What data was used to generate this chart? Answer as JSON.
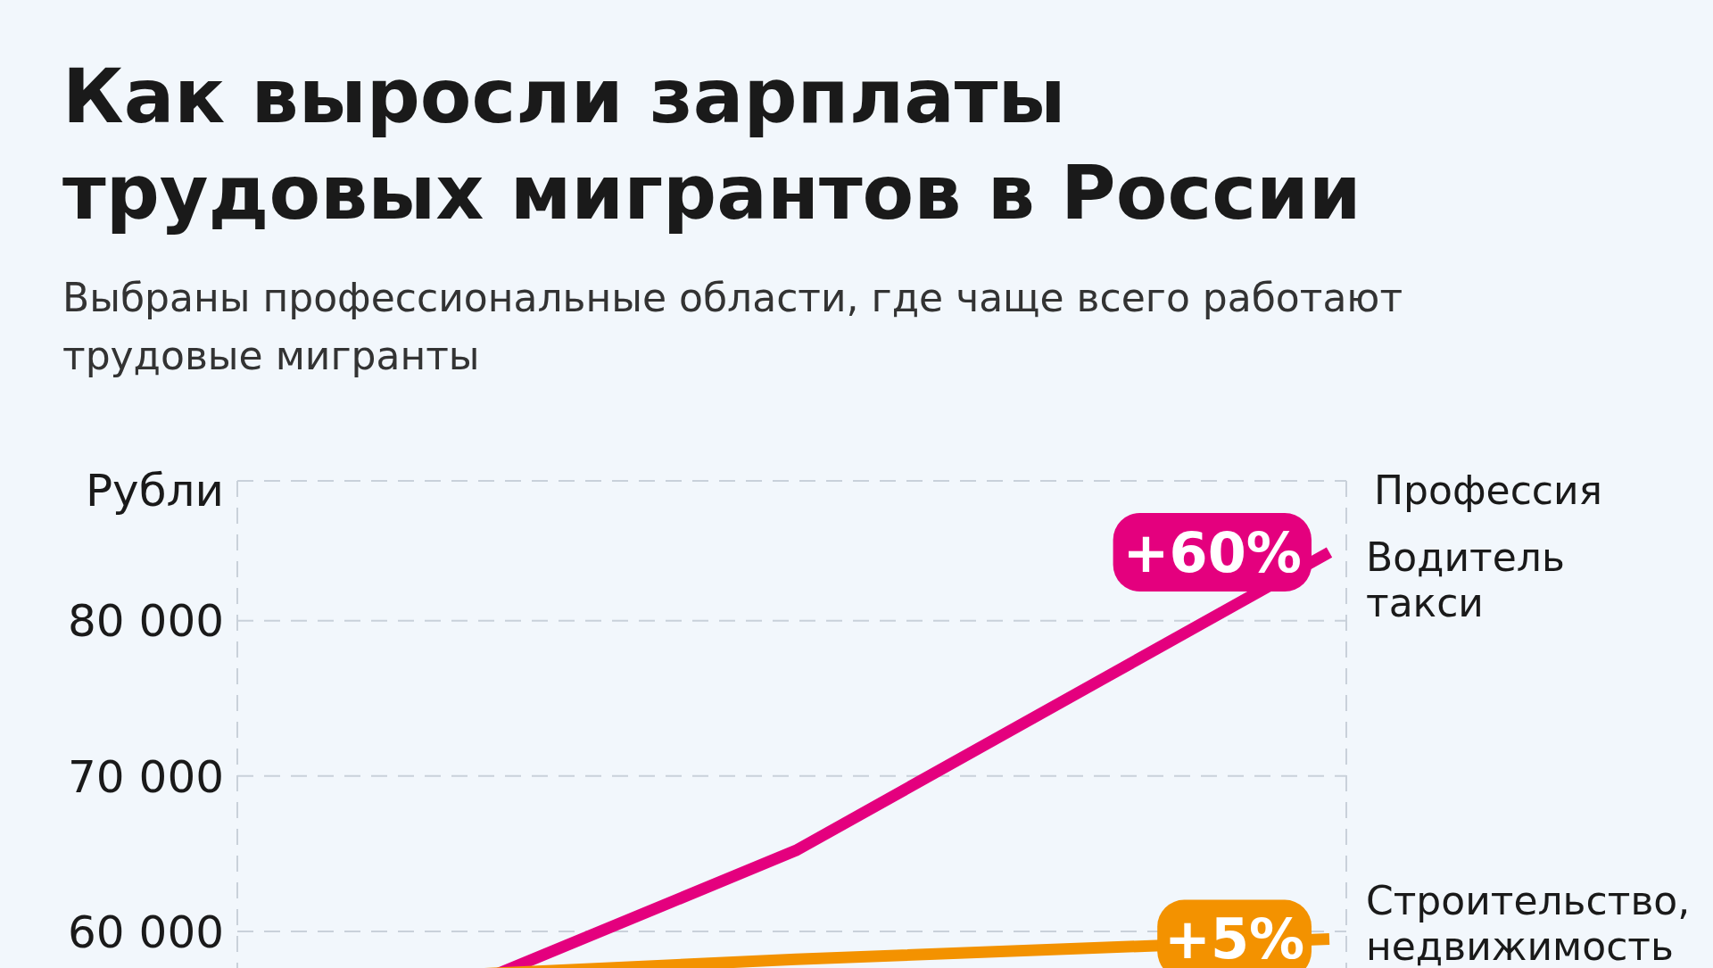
{
  "chart_data": {
    "type": "line",
    "title": "Как выросли зарплаты трудовых мигрантов в России",
    "subtitle": "Выбраны профессиональные области, где чаще всего работают трудовые мигранты",
    "ylabel": "Рубли",
    "legend_title": "Профессия",
    "categories": [
      null,
      null,
      null
    ],
    "series": [
      {
        "name": "Водитель такси",
        "color": "#e4007e",
        "values": [
          51000,
          65200,
          84400
        ]
      },
      {
        "name": "Строительство, недвижимость",
        "color": "#f39200",
        "values": [
          56600,
          58200,
          59500
        ]
      }
    ],
    "ylim": [
      50000,
      89000
    ],
    "yticks": [
      {
        "value": 60000,
        "label": "60 000"
      },
      {
        "value": 70000,
        "label": "70 000"
      },
      {
        "value": 80000,
        "label": "80 000"
      }
    ],
    "grid": true,
    "tick_labels": "y",
    "marker": "none",
    "line_style": "solid",
    "annotations": [
      "+60%",
      "+5%"
    ]
  }
}
